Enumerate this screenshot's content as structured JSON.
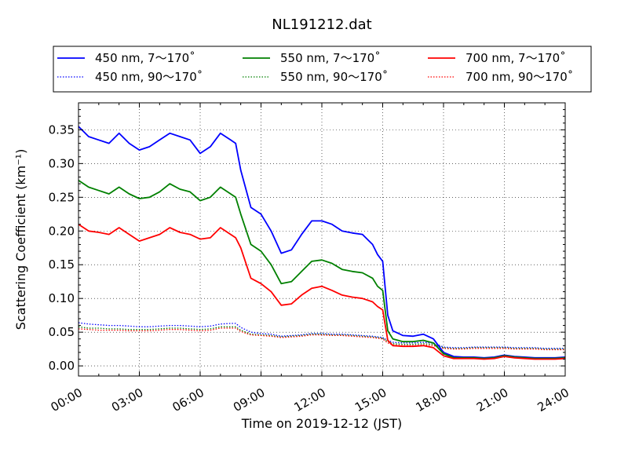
{
  "chart_data": {
    "type": "line",
    "title": "NL191212.dat",
    "xlabel": "Time on 2019-12-12 (JST)",
    "ylabel": "Scattering Coefficient (km⁻¹)",
    "xlim": [
      "00:00",
      "24:00"
    ],
    "ylim": [
      -0.015,
      0.39
    ],
    "x_ticks": [
      "00:00",
      "03:00",
      "06:00",
      "09:00",
      "12:00",
      "15:00",
      "18:00",
      "21:00",
      "24:00"
    ],
    "y_ticks": [
      "0.00",
      "0.05",
      "0.10",
      "0.15",
      "0.20",
      "0.25",
      "0.30",
      "0.35"
    ],
    "grid": true,
    "legend_placement": "top, outside",
    "x": [
      "00:00",
      "00:30",
      "01:00",
      "01:30",
      "02:00",
      "02:30",
      "03:00",
      "03:30",
      "04:00",
      "04:30",
      "05:00",
      "05:30",
      "06:00",
      "06:30",
      "07:00",
      "07:30",
      "07:45",
      "08:00",
      "08:30",
      "09:00",
      "09:30",
      "10:00",
      "10:30",
      "11:00",
      "11:30",
      "12:00",
      "12:30",
      "13:00",
      "13:30",
      "14:00",
      "14:30",
      "14:45",
      "15:00",
      "15:15",
      "15:30",
      "16:00",
      "16:30",
      "17:00",
      "17:30",
      "18:00",
      "18:30",
      "19:00",
      "19:30",
      "20:00",
      "20:30",
      "21:00",
      "21:30",
      "22:00",
      "22:30",
      "23:00",
      "23:30",
      "24:00"
    ],
    "series": [
      {
        "name": "450 nm, 7～170˚",
        "color": "#0000ff",
        "style": "solid",
        "values": [
          0.355,
          0.34,
          0.335,
          0.33,
          0.345,
          0.33,
          0.32,
          0.325,
          0.335,
          0.345,
          0.34,
          0.335,
          0.315,
          0.325,
          0.345,
          0.335,
          0.33,
          0.29,
          0.235,
          0.225,
          0.2,
          0.167,
          0.172,
          0.195,
          0.215,
          0.215,
          0.21,
          0.2,
          0.197,
          0.195,
          0.18,
          0.165,
          0.155,
          0.075,
          0.052,
          0.045,
          0.044,
          0.047,
          0.04,
          0.02,
          0.014,
          0.013,
          0.013,
          0.012,
          0.013,
          0.016,
          0.014,
          0.013,
          0.012,
          0.012,
          0.012,
          0.013
        ]
      },
      {
        "name": "450 nm, 90～170˚",
        "color": "#0000ff",
        "style": "dotted",
        "values": [
          0.064,
          0.062,
          0.061,
          0.06,
          0.06,
          0.059,
          0.058,
          0.058,
          0.059,
          0.06,
          0.06,
          0.059,
          0.058,
          0.059,
          0.062,
          0.063,
          0.063,
          0.057,
          0.05,
          0.048,
          0.047,
          0.044,
          0.045,
          0.046,
          0.048,
          0.048,
          0.047,
          0.047,
          0.046,
          0.045,
          0.044,
          0.043,
          0.042,
          0.038,
          0.035,
          0.034,
          0.034,
          0.035,
          0.034,
          0.028,
          0.027,
          0.027,
          0.028,
          0.028,
          0.028,
          0.028,
          0.027,
          0.027,
          0.027,
          0.026,
          0.026,
          0.026
        ]
      },
      {
        "name": "550 nm, 7～170˚",
        "color": "#008000",
        "style": "solid",
        "values": [
          0.275,
          0.265,
          0.26,
          0.255,
          0.265,
          0.255,
          0.248,
          0.25,
          0.258,
          0.27,
          0.262,
          0.258,
          0.245,
          0.25,
          0.265,
          0.255,
          0.25,
          0.225,
          0.18,
          0.17,
          0.15,
          0.122,
          0.125,
          0.14,
          0.155,
          0.157,
          0.152,
          0.143,
          0.14,
          0.138,
          0.13,
          0.118,
          0.112,
          0.052,
          0.04,
          0.036,
          0.036,
          0.038,
          0.034,
          0.018,
          0.012,
          0.012,
          0.012,
          0.011,
          0.012,
          0.015,
          0.013,
          0.012,
          0.011,
          0.011,
          0.011,
          0.012
        ]
      },
      {
        "name": "550 nm, 90～170˚",
        "color": "#008000",
        "style": "dotted",
        "values": [
          0.058,
          0.056,
          0.056,
          0.055,
          0.055,
          0.054,
          0.054,
          0.054,
          0.055,
          0.056,
          0.056,
          0.055,
          0.054,
          0.055,
          0.058,
          0.058,
          0.058,
          0.053,
          0.047,
          0.046,
          0.045,
          0.043,
          0.044,
          0.045,
          0.047,
          0.047,
          0.046,
          0.046,
          0.045,
          0.044,
          0.043,
          0.042,
          0.041,
          0.036,
          0.033,
          0.032,
          0.032,
          0.033,
          0.032,
          0.027,
          0.026,
          0.026,
          0.027,
          0.027,
          0.027,
          0.027,
          0.026,
          0.026,
          0.026,
          0.025,
          0.025,
          0.025
        ]
      },
      {
        "name": "700 nm, 7～170˚",
        "color": "#ff0000",
        "style": "solid",
        "values": [
          0.21,
          0.2,
          0.198,
          0.195,
          0.205,
          0.195,
          0.185,
          0.19,
          0.195,
          0.205,
          0.198,
          0.195,
          0.188,
          0.19,
          0.205,
          0.195,
          0.19,
          0.175,
          0.13,
          0.122,
          0.11,
          0.09,
          0.092,
          0.105,
          0.115,
          0.118,
          0.112,
          0.105,
          0.102,
          0.1,
          0.095,
          0.088,
          0.083,
          0.038,
          0.03,
          0.029,
          0.029,
          0.03,
          0.027,
          0.015,
          0.011,
          0.011,
          0.011,
          0.01,
          0.011,
          0.014,
          0.012,
          0.011,
          0.01,
          0.01,
          0.01,
          0.011
        ]
      },
      {
        "name": "700 nm, 90～170˚",
        "color": "#ff0000",
        "style": "dotted",
        "values": [
          0.055,
          0.054,
          0.053,
          0.053,
          0.053,
          0.052,
          0.052,
          0.052,
          0.053,
          0.054,
          0.054,
          0.053,
          0.052,
          0.053,
          0.056,
          0.056,
          0.056,
          0.051,
          0.046,
          0.045,
          0.044,
          0.042,
          0.043,
          0.044,
          0.046,
          0.046,
          0.045,
          0.045,
          0.044,
          0.043,
          0.042,
          0.041,
          0.04,
          0.034,
          0.031,
          0.03,
          0.03,
          0.031,
          0.03,
          0.026,
          0.025,
          0.025,
          0.026,
          0.026,
          0.026,
          0.026,
          0.025,
          0.025,
          0.025,
          0.024,
          0.024,
          0.024
        ]
      }
    ]
  }
}
